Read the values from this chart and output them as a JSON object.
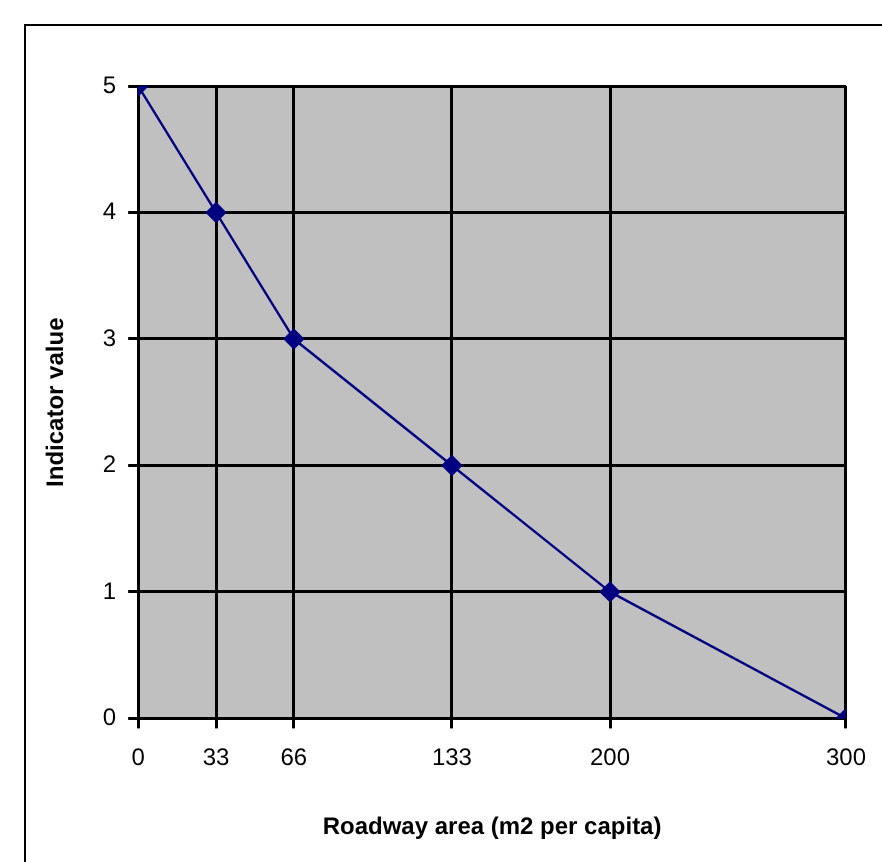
{
  "chart_data": {
    "type": "line",
    "xlabel": "Roadway area (m2 per capita)",
    "ylabel": "Indicator value",
    "x": [
      0,
      33,
      66,
      133,
      200,
      300
    ],
    "series": [
      {
        "color": "#000080",
        "values": [
          5,
          4,
          3,
          2,
          1,
          0
        ]
      }
    ],
    "xlim": [
      0,
      300
    ],
    "xticks": [
      0,
      33,
      66,
      133,
      200,
      300
    ],
    "ylim": [
      0,
      5
    ],
    "yticks": [
      0,
      1,
      2,
      3,
      4,
      5
    ],
    "grid": true,
    "legend": false,
    "marker": "diamond",
    "line_style": "solid"
  }
}
